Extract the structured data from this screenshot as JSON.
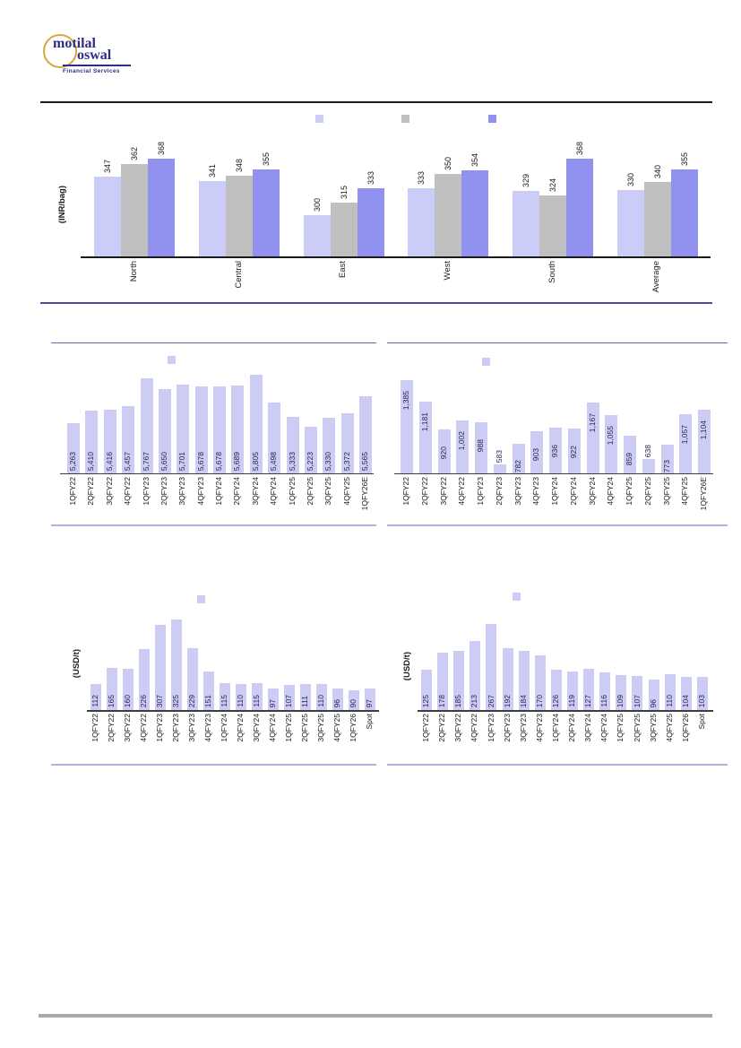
{
  "logo": {
    "word1": "motilal",
    "word2": "oswal",
    "tagline": "Financial Services"
  },
  "colors": {
    "series_lavender": "#ccccf8",
    "series_gray": "#bfbfbf",
    "series_periwinkle": "#9191f0",
    "bar_single": "#ccccf5"
  },
  "chart_data": [
    {
      "id": "region-prices",
      "type": "bar",
      "ylabel": "(INR/bag)",
      "categories": [
        "North",
        "Central",
        "East",
        "West",
        "South",
        "Average"
      ],
      "series": [
        {
          "name": "series-1",
          "color_key": "series_lavender",
          "values": [
            347,
            341,
            300,
            333,
            329,
            330
          ]
        },
        {
          "name": "series-2",
          "color_key": "series_gray",
          "values": [
            362,
            348,
            315,
            350,
            324,
            340
          ]
        },
        {
          "name": "series-3",
          "color_key": "series_periwinkle",
          "values": [
            368,
            355,
            333,
            354,
            368,
            355
          ]
        }
      ],
      "ylim": [
        250,
        375
      ],
      "grid": false,
      "legend_position": "top",
      "legend_labels_visible": false,
      "value_labels": "outside-end"
    },
    {
      "id": "quarterly-realization-inr",
      "type": "bar",
      "categories": [
        "1QFY22",
        "2QFY22",
        "3QFY22",
        "4QFY22",
        "1QFY23",
        "2QFY23",
        "3QFY23",
        "4QFY23",
        "1QFY24",
        "2QFY24",
        "3QFY24",
        "4QFY24",
        "1QFY25",
        "2QFY25",
        "3QFY25",
        "4QFY25",
        "1QFY26E"
      ],
      "values": [
        5263,
        5410,
        5416,
        5457,
        5767,
        5650,
        5701,
        5678,
        5678,
        5689,
        5805,
        5498,
        5333,
        5223,
        5330,
        5372,
        5565
      ],
      "labels": [
        "5,263",
        "5,410",
        "5,416",
        "5,457",
        "5,767",
        "5,650",
        "5,701",
        "5,678",
        "5,678",
        "5,689",
        "5,805",
        "5,498",
        "5,333",
        "5,223",
        "5,330",
        "5,372",
        "5,565"
      ],
      "color_key": "bar_single",
      "ylim": [
        4700,
        5850
      ],
      "grid": false,
      "legend_position": "top",
      "legend_labels_visible": false,
      "value_labels": "inside-base"
    },
    {
      "id": "quarterly-spread",
      "type": "bar",
      "categories": [
        "1QFY22",
        "2QFY22",
        "3QFY22",
        "4QFY22",
        "1QFY23",
        "2QFY23",
        "3QFY23",
        "4QFY23",
        "1QFY24",
        "2QFY24",
        "3QFY24",
        "4QFY24",
        "1QFY25",
        "2QFY25",
        "3QFY25",
        "4QFY25",
        "1QFY26E"
      ],
      "values": [
        1385,
        1181,
        920,
        1002,
        988,
        583,
        782,
        903,
        936,
        922,
        1167,
        1055,
        859,
        638,
        773,
        1057,
        1104
      ],
      "labels": [
        "1,385",
        "1,181",
        "920",
        "1,002",
        "988",
        "583",
        "782",
        "903",
        "936",
        "922",
        "1,167",
        "1,055",
        "859",
        "638",
        "773",
        "1,057",
        "1,104"
      ],
      "color_key": "bar_single",
      "ylim": [
        500,
        1400
      ],
      "grid": false,
      "legend_position": "top",
      "legend_labels_visible": false,
      "value_labels": "inside-end"
    },
    {
      "id": "petcoke-usd",
      "type": "bar",
      "ylabel": "(USD/t)",
      "categories": [
        "1QFY22",
        "2QFY22",
        "3QFY22",
        "4QFY22",
        "1QFY23",
        "2QFY23",
        "3QFY23",
        "4QFY23",
        "1QFY24",
        "2QFY24",
        "3QFY24",
        "4QFY24",
        "1QFY25",
        "2QFY25",
        "3QFY25",
        "4QFY25",
        "1QFY26",
        "Spot"
      ],
      "values": [
        112,
        165,
        160,
        226,
        307,
        325,
        229,
        151,
        115,
        110,
        115,
        97,
        107,
        111,
        110,
        96,
        90,
        97
      ],
      "labels": [
        "112",
        "165",
        "160",
        "226",
        "307",
        "325",
        "229",
        "151",
        "115",
        "110",
        "115",
        "97",
        "107",
        "111",
        "110",
        "96",
        "90",
        "97"
      ],
      "color_key": "bar_single",
      "ylim": [
        25,
        330
      ],
      "grid": false,
      "legend_position": "top",
      "legend_labels_visible": false,
      "value_labels": "inside-base"
    },
    {
      "id": "coal-usd",
      "type": "bar",
      "ylabel": "(USD/t)",
      "categories": [
        "1QFY22",
        "2QFY22",
        "3QFY22",
        "4QFY22",
        "1QFY23",
        "2QFY23",
        "3QFY23",
        "4QFY23",
        "1QFY24",
        "2QFY24",
        "3QFY24",
        "4QFY24",
        "1QFY25",
        "2QFY25",
        "3QFY25",
        "4QFY25",
        "1QFY26",
        "Spot"
      ],
      "values": [
        125,
        178,
        185,
        213,
        267,
        192,
        184,
        170,
        126,
        119,
        127,
        116,
        109,
        107,
        96,
        110,
        104,
        103
      ],
      "labels": [
        "125",
        "178",
        "185",
        "213",
        "267",
        "192",
        "184",
        "170",
        "126",
        "119",
        "127",
        "116",
        "109",
        "107",
        "96",
        "110",
        "104",
        "103"
      ],
      "color_key": "bar_single",
      "ylim": [
        0,
        270
      ],
      "grid": false,
      "legend_position": "top",
      "legend_labels_visible": false,
      "value_labels": "inside-base"
    }
  ]
}
